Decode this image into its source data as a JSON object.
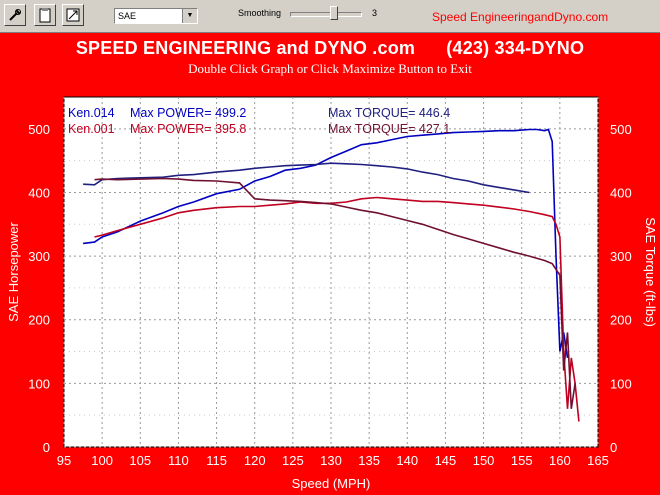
{
  "toolbar": {
    "buttons": [
      {
        "name": "tool-button-1",
        "icon": "wrench-icon"
      },
      {
        "name": "tool-button-2",
        "icon": "clipboard-icon"
      },
      {
        "name": "tool-button-3",
        "icon": "resize-icon"
      }
    ],
    "correction_select": "SAE",
    "smoothing_label": "Smoothing",
    "smoothing_value": "3",
    "brand_text": "Speed EngineeringandDyno.com"
  },
  "header": {
    "title": "SPEED ENGINEERING and DYNO .com      (423) 334-DYNO",
    "subtitle": "Double Click Graph or Click Maximize Button to Exit"
  },
  "colors": {
    "background": "#ff0000",
    "run_a": "#0000c0",
    "run_b": "#c00020",
    "torque_a": "#202080",
    "torque_b": "#701030"
  },
  "legend": [
    {
      "run": "Ken.014",
      "power_label": "Max POWER= 499.2",
      "torque_label": "Max TORQUE= 446.4",
      "color": "#0000c0",
      "torque_color": "#202080"
    },
    {
      "run": "Ken.001",
      "power_label": "Max POWER= 395.8",
      "torque_label": "Max TORQUE= 427.1",
      "color": "#c00020",
      "torque_color": "#701030"
    }
  ],
  "chart_data": {
    "type": "line",
    "xlabel": "Speed (MPH)",
    "ylabel": "SAE Horsepower",
    "y2label": "SAE Torque (ft-lbs)",
    "xlim": [
      95,
      165
    ],
    "ylim": [
      0,
      550
    ],
    "y2lim": [
      0,
      550
    ],
    "xticks": [
      95,
      100,
      105,
      110,
      115,
      120,
      125,
      130,
      135,
      140,
      145,
      150,
      155,
      160,
      165
    ],
    "yticks": [
      0,
      100,
      200,
      300,
      400,
      500
    ],
    "grid": true,
    "series": [
      {
        "name": "Ken.014 Power",
        "color": "#0000c0",
        "x": [
          97.5,
          99,
          100,
          102,
          105,
          108,
          110,
          112,
          115,
          118,
          120,
          122,
          124,
          126,
          128,
          130,
          132,
          134,
          136,
          138,
          140,
          142,
          144,
          146,
          148,
          150,
          152,
          154,
          155,
          156,
          157,
          158,
          158.5,
          159,
          159.5,
          160,
          160.5,
          161
        ],
        "y": [
          320,
          322,
          330,
          338,
          355,
          368,
          378,
          385,
          398,
          405,
          418,
          425,
          435,
          438,
          443,
          455,
          465,
          475,
          478,
          483,
          488,
          490,
          492,
          494,
          495,
          496,
          497,
          497,
          498,
          499,
          499,
          497,
          499,
          480,
          300,
          150,
          180,
          140
        ]
      },
      {
        "name": "Ken.014 Torque",
        "color": "#202080",
        "x": [
          97.5,
          99,
          100,
          102,
          105,
          108,
          110,
          112,
          115,
          118,
          120,
          122,
          124,
          126,
          128,
          130,
          132,
          134,
          136,
          138,
          140,
          142,
          144,
          146,
          148,
          150,
          152,
          154,
          156
        ],
        "y": [
          413,
          412,
          420,
          422,
          423,
          424,
          427,
          428,
          432,
          435,
          438,
          440,
          442,
          443,
          444,
          446,
          445,
          444,
          442,
          440,
          437,
          432,
          428,
          422,
          418,
          412,
          408,
          404,
          400
        ]
      },
      {
        "name": "Ken.001 Power",
        "color": "#c00020",
        "x": [
          99,
          100,
          102,
          105,
          108,
          110,
          112,
          115,
          118,
          120,
          122,
          124,
          126,
          128,
          130,
          132,
          134,
          136,
          138,
          140,
          142,
          144,
          146,
          148,
          150,
          152,
          154,
          156,
          158,
          159,
          159.5,
          160,
          160.5,
          161,
          161.5,
          162,
          162.5
        ],
        "y": [
          330,
          333,
          340,
          350,
          360,
          368,
          372,
          376,
          378,
          378,
          380,
          382,
          385,
          383,
          383,
          385,
          390,
          392,
          390,
          388,
          386,
          386,
          384,
          382,
          380,
          377,
          374,
          370,
          365,
          362,
          350,
          330,
          150,
          60,
          140,
          100,
          40
        ]
      },
      {
        "name": "Ken.001 Torque",
        "color": "#701030",
        "x": [
          99,
          100,
          102,
          105,
          108,
          110,
          112,
          115,
          118,
          120,
          122,
          124,
          126,
          128,
          130,
          132,
          134,
          136,
          138,
          140,
          142,
          144,
          146,
          148,
          150,
          152,
          154,
          156,
          158,
          159,
          160,
          160.5,
          161,
          161.5,
          162
        ],
        "y": [
          420,
          421,
          420,
          421,
          422,
          421,
          419,
          418,
          415,
          390,
          388,
          387,
          386,
          384,
          382,
          377,
          372,
          368,
          362,
          356,
          350,
          342,
          334,
          327,
          320,
          313,
          306,
          300,
          293,
          288,
          270,
          120,
          180,
          60,
          100
        ]
      }
    ]
  }
}
